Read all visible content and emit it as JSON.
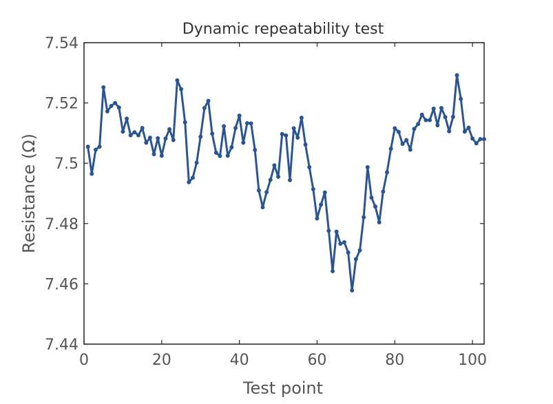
{
  "chart_data": {
    "type": "line",
    "title": "Dynamic repeatability test",
    "xlabel": "Test point",
    "ylabel": "Resistance (Ω)",
    "xlim": [
      0,
      103
    ],
    "ylim": [
      7.44,
      7.54
    ],
    "xticks": [
      0,
      20,
      40,
      60,
      80,
      100
    ],
    "xtick_labels": [
      "0",
      "20",
      "40",
      "60",
      "80",
      "100"
    ],
    "yticks": [
      7.44,
      7.46,
      7.48,
      7.5,
      7.52,
      7.54
    ],
    "ytick_labels": [
      "7.44",
      "7.46",
      "7.48",
      "7.5",
      "7.52",
      "7.54"
    ],
    "grid": false,
    "legend": "none",
    "color": "#2b5591",
    "markers": true,
    "series": [
      {
        "x": [
          1,
          2,
          3,
          4,
          5,
          6,
          7,
          8,
          9,
          10,
          11,
          12,
          13,
          14,
          15,
          16,
          17,
          18,
          19,
          20,
          21,
          22,
          23,
          24,
          25,
          26,
          27,
          28,
          29,
          30,
          31,
          32,
          33,
          34,
          35,
          36,
          37,
          38,
          39,
          40,
          41,
          42,
          43,
          44,
          45,
          46,
          47,
          48,
          49,
          50,
          51,
          52,
          53,
          54,
          55,
          56,
          57,
          58,
          59,
          60,
          61,
          62,
          63,
          64,
          65,
          66,
          67,
          68,
          69,
          70,
          71,
          72,
          73,
          74,
          75,
          76,
          77,
          78,
          79,
          80,
          81,
          82,
          83,
          84,
          85,
          86,
          87,
          88,
          89,
          90,
          91,
          92,
          93,
          94,
          95,
          96,
          97,
          98,
          99,
          100,
          101,
          102,
          103
        ],
        "values": [
          7.5055,
          7.4965,
          7.5045,
          7.5055,
          7.5252,
          7.5172,
          7.519,
          7.52,
          7.5185,
          7.5105,
          7.5148,
          7.5093,
          7.5103,
          7.5093,
          7.5117,
          7.5068,
          7.5085,
          7.503,
          7.5083,
          7.5025,
          7.5082,
          7.5113,
          7.5077,
          7.5275,
          7.5246,
          7.5136,
          7.4937,
          7.4952,
          7.5002,
          7.5088,
          7.5183,
          7.5207,
          7.5098,
          7.5035,
          7.5024,
          7.5123,
          7.5025,
          7.5053,
          7.5117,
          7.5158,
          7.5068,
          7.5133,
          7.5132,
          7.5044,
          7.491,
          7.4854,
          7.4904,
          7.4945,
          7.4993,
          7.4955,
          7.5097,
          7.5092,
          7.4944,
          7.5116,
          7.5085,
          7.5151,
          7.5062,
          7.4987,
          7.4914,
          7.4817,
          7.4863,
          7.4903,
          7.4776,
          7.4642,
          7.4773,
          7.4733,
          7.4738,
          7.4704,
          7.4578,
          7.4682,
          7.4711,
          7.4821,
          7.4987,
          7.4886,
          7.4856,
          7.4804,
          7.4906,
          7.497,
          7.5048,
          7.5116,
          7.5104,
          7.5064,
          7.5077,
          7.5045,
          7.5114,
          7.513,
          7.5161,
          7.5143,
          7.5143,
          7.5181,
          7.5126,
          7.5183,
          7.5153,
          7.5106,
          7.5154,
          7.5292,
          7.5213,
          7.5105,
          7.5118,
          7.5082,
          7.5066,
          7.508,
          7.508
        ]
      }
    ]
  }
}
